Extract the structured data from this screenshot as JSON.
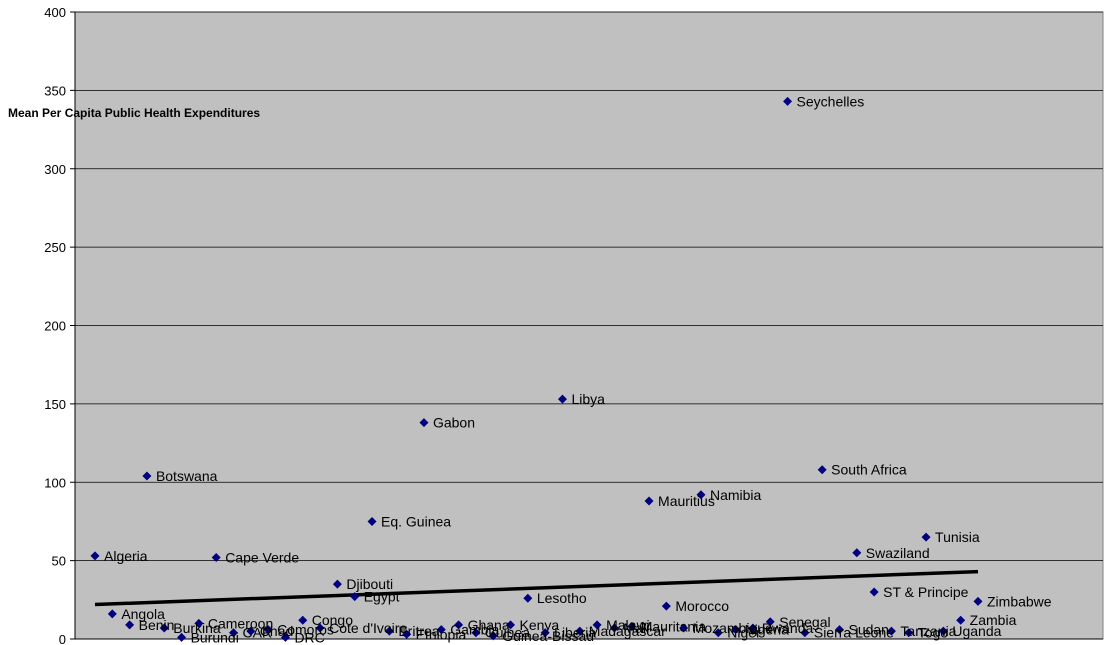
{
  "chart_data": {
    "type": "scatter",
    "title": "",
    "ylabel": "Mean Per Capita Public Health Expenditures",
    "xlabel": "",
    "ylim": [
      0,
      400
    ],
    "yticks": [
      0,
      50,
      100,
      150,
      200,
      250,
      300,
      350,
      400
    ],
    "grid": "horizontal",
    "plot_background": "#C0C0C0",
    "marker_color": "#000080",
    "trendline": {
      "from": {
        "index": 1,
        "y": 22
      },
      "to": {
        "index": 54,
        "y": 43
      },
      "color": "#000000"
    },
    "points": [
      {
        "label": "Algeria",
        "y": 53
      },
      {
        "label": "Angola",
        "y": 16
      },
      {
        "label": "Benin",
        "y": 9
      },
      {
        "label": "Botswana",
        "y": 104
      },
      {
        "label": "Burkina",
        "y": 7
      },
      {
        "label": "Burundi",
        "y": 1
      },
      {
        "label": "Cameroon",
        "y": 10
      },
      {
        "label": "Cape Verde",
        "y": 52
      },
      {
        "label": "CAR",
        "y": 4
      },
      {
        "label": "Chad",
        "y": 5
      },
      {
        "label": "Comoros",
        "y": 6
      },
      {
        "label": "DRC",
        "y": 1
      },
      {
        "label": "Congo",
        "y": 12
      },
      {
        "label": "Cote d'Ivoire",
        "y": 7
      },
      {
        "label": "Djibouti",
        "y": 35
      },
      {
        "label": "Egypt",
        "y": 27
      },
      {
        "label": "Eq. Guinea",
        "y": 75
      },
      {
        "label": "Eritrea",
        "y": 5
      },
      {
        "label": "Ethiopia",
        "y": 3
      },
      {
        "label": "Gabon",
        "y": 138
      },
      {
        "label": "Gambia",
        "y": 6
      },
      {
        "label": "Ghana",
        "y": 9
      },
      {
        "label": "Guinea",
        "y": 4
      },
      {
        "label": "Guinea-Bissau",
        "y": 2
      },
      {
        "label": "Kenya",
        "y": 9
      },
      {
        "label": "Lesotho",
        "y": 26
      },
      {
        "label": "Liberia",
        "y": 4
      },
      {
        "label": "Libya",
        "y": 153
      },
      {
        "label": "Madagascar",
        "y": 5
      },
      {
        "label": "Malawi",
        "y": 9
      },
      {
        "label": "Mali",
        "y": 7
      },
      {
        "label": "Mauritania",
        "y": 8
      },
      {
        "label": "Mauritius",
        "y": 88
      },
      {
        "label": "Morocco",
        "y": 21
      },
      {
        "label": "Mozambique",
        "y": 7
      },
      {
        "label": "Namibia",
        "y": 92
      },
      {
        "label": "Niger",
        "y": 4
      },
      {
        "label": "Nigeria",
        "y": 6
      },
      {
        "label": "Rwanda",
        "y": 7
      },
      {
        "label": "Senegal",
        "y": 11
      },
      {
        "label": "Seychelles",
        "y": 343
      },
      {
        "label": "Sierra Leone",
        "y": 4
      },
      {
        "label": "South Africa",
        "y": 108
      },
      {
        "label": "Sudan",
        "y": 6
      },
      {
        "label": "Swaziland",
        "y": 55
      },
      {
        "label": "ST & Principe",
        "y": 30
      },
      {
        "label": "Tanzania",
        "y": 5
      },
      {
        "label": "Togo",
        "y": 4
      },
      {
        "label": "Tunisia",
        "y": 65
      },
      {
        "label": "Uganda",
        "y": 5
      },
      {
        "label": "Zambia",
        "y": 12
      },
      {
        "label": "Zimbabwe",
        "y": 24
      }
    ]
  }
}
